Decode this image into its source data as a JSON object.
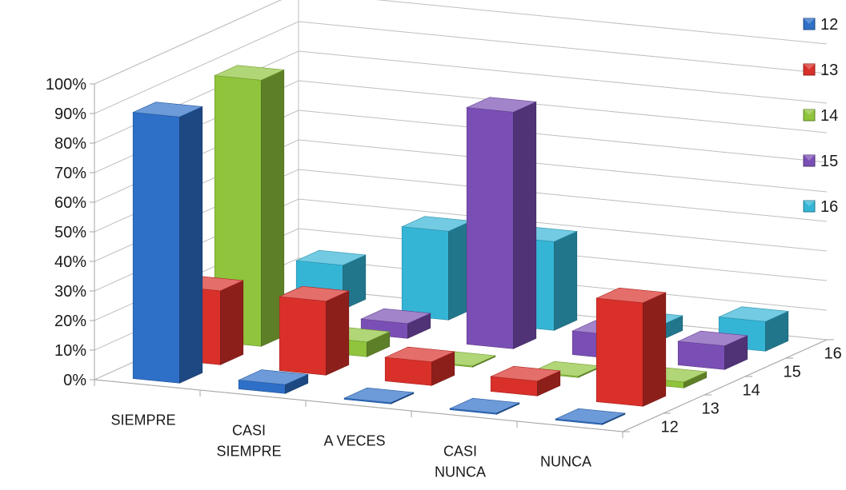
{
  "chart_data": {
    "type": "bar",
    "subtype": "3d-column",
    "title": "",
    "xlabel": "",
    "ylabel": "",
    "ylim": [
      0,
      100
    ],
    "y_ticks": [
      "0%",
      "10%",
      "20%",
      "30%",
      "40%",
      "50%",
      "60%",
      "70%",
      "80%",
      "90%",
      "100%"
    ],
    "categories": [
      "SIEMPRE",
      "CASI SIEMPRE",
      "A VECES",
      "CASI NUNCA",
      "NUNCA"
    ],
    "category_lines": [
      [
        "SIEMPRE"
      ],
      [
        "CASI",
        "SIEMPRE"
      ],
      [
        "A VECES"
      ],
      [
        "CASI",
        "NUNCA"
      ],
      [
        "NUNCA"
      ]
    ],
    "depth_labels": [
      "12",
      "13",
      "14",
      "15",
      "16"
    ],
    "legend_position": "right",
    "series": [
      {
        "name": "12",
        "color": "#2e6fc7",
        "values": [
          90,
          3,
          0,
          0,
          0
        ]
      },
      {
        "name": "13",
        "color": "#d9302a",
        "values": [
          25,
          25,
          8,
          5,
          35
        ]
      },
      {
        "name": "14",
        "color": "#8fc43c",
        "values": [
          90,
          5,
          0,
          0,
          2
        ]
      },
      {
        "name": "15",
        "color": "#7a4fb5",
        "values": [
          5,
          5,
          80,
          8,
          8
        ]
      },
      {
        "name": "16",
        "color": "#35b5d6",
        "values": [
          15,
          30,
          30,
          5,
          10
        ]
      }
    ]
  }
}
